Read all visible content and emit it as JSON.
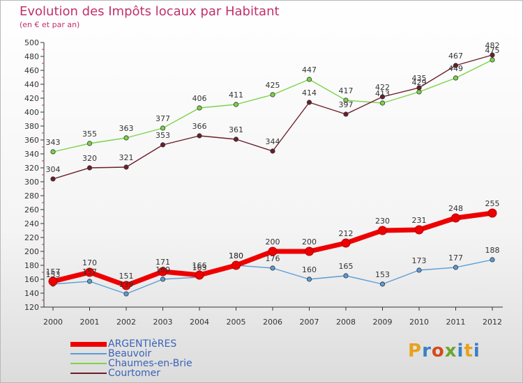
{
  "title": "Evolution des Impôts locaux par Habitant",
  "subtitle": "(en € et par an)",
  "logo": {
    "text": "Proxiti",
    "colors": [
      "#e8a21b",
      "#3b7fc4",
      "#d24b1f",
      "#6aa82b",
      "#3b7fc4",
      "#e8a21b",
      "#3b7fc4"
    ]
  },
  "chart_data": {
    "type": "line",
    "x": [
      2000,
      2001,
      2002,
      2003,
      2004,
      2005,
      2006,
      2007,
      2008,
      2009,
      2010,
      2011,
      2012
    ],
    "ylim": [
      120,
      500
    ],
    "yticks": [
      120,
      140,
      160,
      180,
      200,
      220,
      240,
      260,
      280,
      300,
      320,
      340,
      360,
      380,
      400,
      420,
      440,
      460,
      480,
      500
    ],
    "grid": false,
    "legend_position": "bottom-left",
    "series": [
      {
        "name": "ARGENTIèRES",
        "color": "#ee0000",
        "values": [
          157,
          170,
          151,
          171,
          166,
          180,
          200,
          200,
          212,
          230,
          231,
          248,
          255
        ]
      },
      {
        "name": "Beauvoir",
        "color": "#5b9bd5",
        "values": [
          153,
          157,
          139,
          160,
          163,
          180,
          176,
          160,
          165,
          153,
          173,
          177,
          188
        ]
      },
      {
        "name": "Chaumes-en-Brie",
        "color": "#7ad34a",
        "values": [
          343,
          355,
          363,
          377,
          406,
          411,
          425,
          447,
          417,
          413,
          429,
          449,
          475
        ]
      },
      {
        "name": "Courtomer",
        "color": "#6b1e2a",
        "values": [
          304,
          320,
          321,
          353,
          366,
          361,
          344,
          414,
          397,
          422,
          435,
          467,
          482
        ]
      }
    ]
  }
}
